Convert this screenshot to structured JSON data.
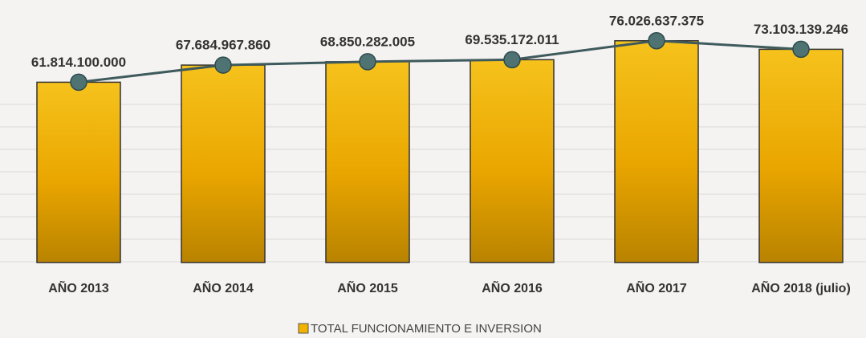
{
  "chart_data": {
    "type": "bar",
    "categories": [
      "AÑO 2013",
      "AÑO 2014",
      "AÑO 2015",
      "AÑO 2016",
      "AÑO 2017",
      "AÑO 2018 (julio)"
    ],
    "series": [
      {
        "name": "TOTAL FUNCIONAMIENTO E INVERSION",
        "color": "#f2b200",
        "values": [
          61814100000,
          67684967860,
          68850282005,
          69535172011,
          76026637375,
          73103139246
        ],
        "value_labels": [
          "61.814.100.000",
          "67.684.967.860",
          "68.850.282.005",
          "69.535.172.011",
          "76.026.637.375",
          "73.103.139.246"
        ]
      }
    ],
    "line_color": "#3f5a5c",
    "marker_color": "#4f7373",
    "ylim": [
      0,
      90000000000
    ]
  }
}
